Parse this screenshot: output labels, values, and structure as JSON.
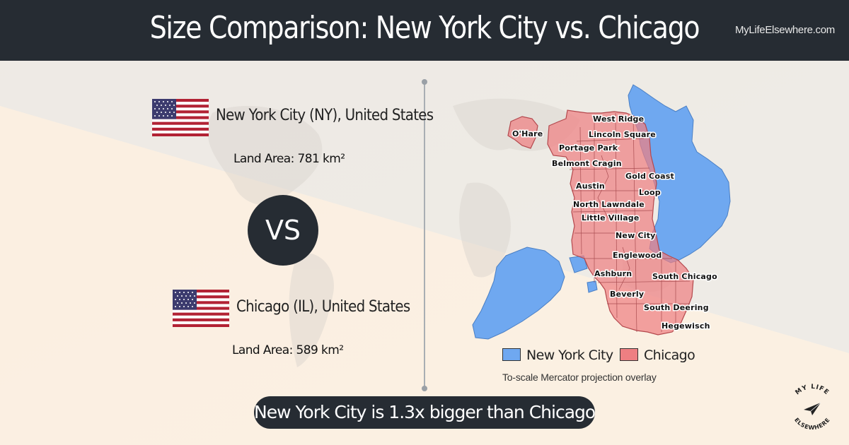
{
  "header": {
    "title": "Size Comparison: New York City vs. Chicago",
    "site": "MyLifeElsewhere.com"
  },
  "city_a": {
    "name": "New York City (NY), United States",
    "land_area_label": "Land Area:",
    "land_area_value": "781 km²",
    "flag": "us-flag-icon"
  },
  "vs_label": "VS",
  "city_b": {
    "name": "Chicago (IL), United States",
    "land_area_label": "Land Area:",
    "land_area_value": "589 km²",
    "flag": "us-flag-icon"
  },
  "map": {
    "neighborhoods": [
      "O'Hare",
      "West Ridge",
      "Lincoln Square",
      "Portage Park",
      "Belmont Cragin",
      "Gold Coast",
      "Austin",
      "Loop",
      "North Lawndale",
      "Little Village",
      "New City",
      "Englewood",
      "Ashburn",
      "South Chicago",
      "Beverly",
      "South Deering",
      "Hegewisch"
    ],
    "legend": [
      {
        "label": "New York City",
        "color": "#6fa8f0"
      },
      {
        "label": "Chicago",
        "color": "#ee7f82"
      }
    ],
    "caption": "To-scale Mercator projection overlay"
  },
  "summary": "New York City is 1.3x bigger than Chicago",
  "logo": {
    "text_top": "MY LIFE",
    "text_bottom": "ELSEWHERE"
  },
  "colors": {
    "header_bg": "#262c33",
    "nyc_fill": "#6fa8f0",
    "chicago_fill": "#ee7f82"
  }
}
